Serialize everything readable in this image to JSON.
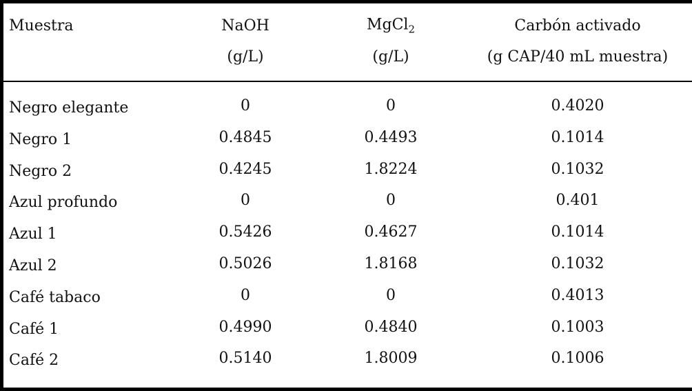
{
  "table": {
    "header": [
      {
        "lines": [
          "Muestra"
        ]
      },
      {
        "lines": [
          "NaOH",
          "(g/L)"
        ]
      },
      {
        "base": "MgCl",
        "sub": "2",
        "lines": [
          "(g/L)"
        ]
      },
      {
        "lines": [
          "Carbón activado",
          "(g CAP/40 mL muestra)"
        ]
      }
    ],
    "rows": [
      [
        "Negro elegante",
        "0",
        "0",
        "0.4020"
      ],
      [
        "Negro 1",
        "0.4845",
        "0.4493",
        "0.1014"
      ],
      [
        "Negro 2",
        "0.4245",
        "1.8224",
        "0.1032"
      ],
      [
        "Azul profundo",
        "0",
        "0",
        "0.401"
      ],
      [
        "Azul 1",
        "0.5426",
        "0.4627",
        "0.1014"
      ],
      [
        "Azul 2",
        "0.5026",
        "1.8168",
        "0.1032"
      ],
      [
        "Café tabaco",
        "0",
        "0",
        "0.4013"
      ],
      [
        "Café 1",
        "0.4990",
        "0.4840",
        "0.1003"
      ],
      [
        "Café 2",
        "0.5140",
        "1.8009",
        "0.1006"
      ]
    ]
  }
}
